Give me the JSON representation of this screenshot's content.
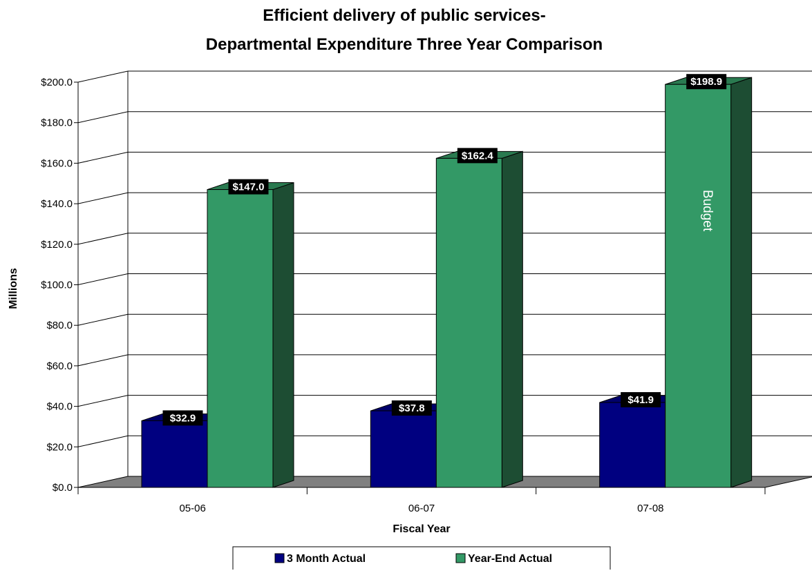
{
  "chart_data": {
    "type": "bar",
    "title": "Efficient delivery of public services-",
    "subtitle": "Departmental Expenditure Three Year Comparison",
    "xlabel": "Fiscal Year",
    "ylabel": "Millions",
    "categories": [
      "05-06",
      "06-07",
      "07-08"
    ],
    "series": [
      {
        "name": "3 Month Actual",
        "values": [
          32.9,
          37.8,
          41.9
        ],
        "labels": [
          "$32.9",
          "$37.8",
          "$41.9"
        ],
        "color": "#000080"
      },
      {
        "name": "Year-End Actual",
        "values": [
          147.0,
          162.4,
          198.9
        ],
        "labels": [
          "$147.0",
          "$162.4",
          "$198.9"
        ],
        "color": "#339966"
      }
    ],
    "ylim": [
      0,
      200
    ],
    "yticks": [
      0,
      20,
      40,
      60,
      80,
      100,
      120,
      140,
      160,
      180,
      200
    ],
    "ytick_labels": [
      "$0.0",
      "$20.0",
      "$40.0",
      "$60.0",
      "$80.0",
      "$100.0",
      "$120.0",
      "$140.0",
      "$160.0",
      "$180.0",
      "$200.0"
    ],
    "grid": true,
    "legend_position": "bottom",
    "annotation": {
      "text": "Budget",
      "category": "07-08",
      "series": "Year-End Actual"
    },
    "colors": {
      "floor": "#808080",
      "blue_side": "#00004d",
      "blue_top": "#00006b",
      "green_side": "#1d4d33",
      "green_top": "#2a7a50",
      "label_bg": "#000000"
    }
  }
}
